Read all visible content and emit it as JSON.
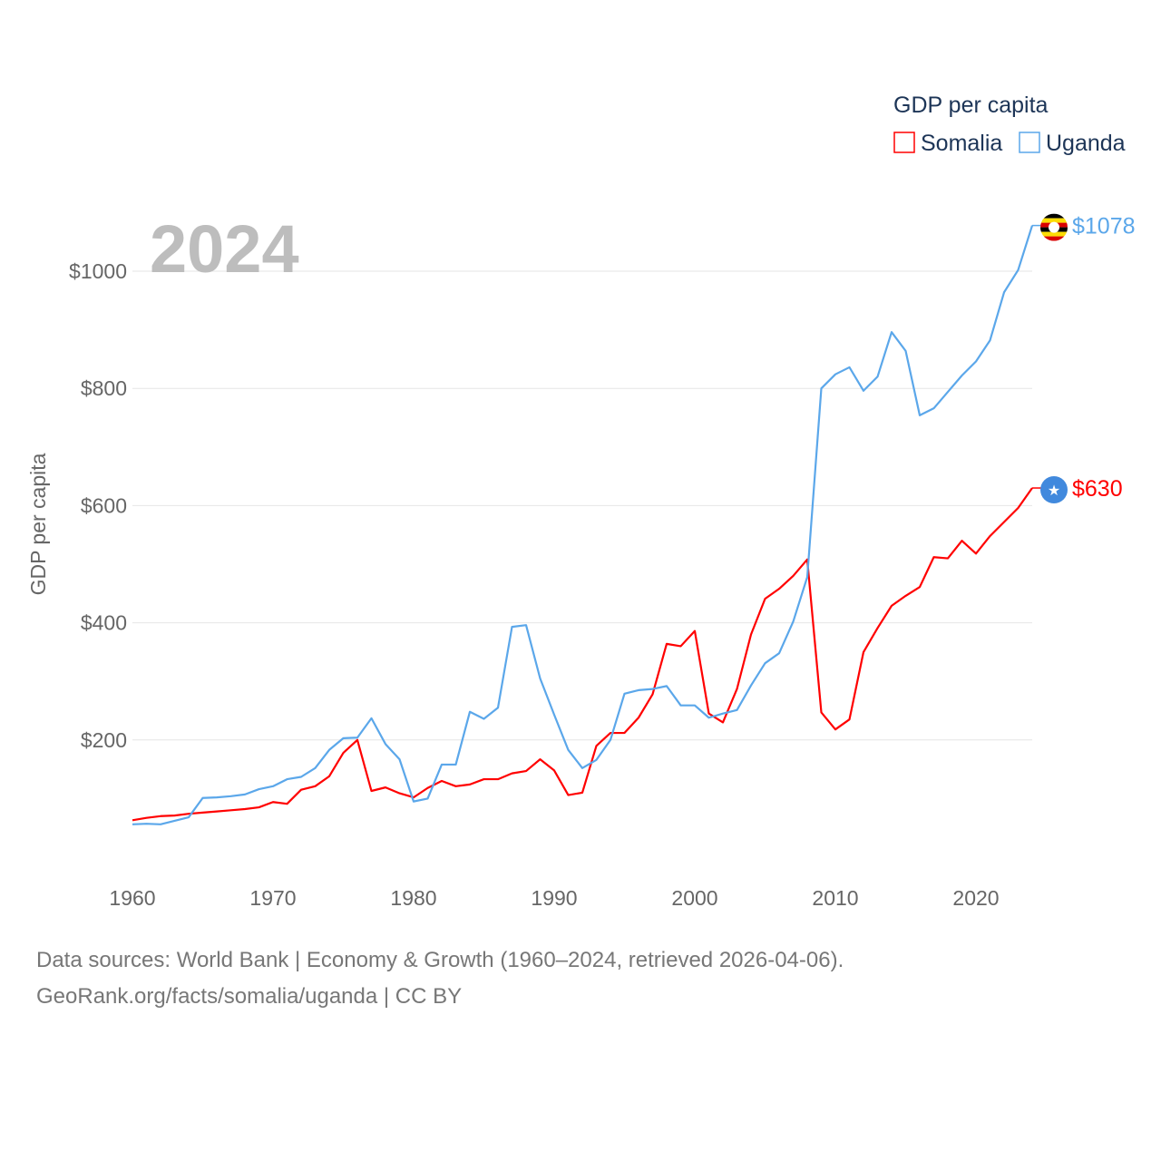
{
  "chart_data": {
    "type": "line",
    "title": "GDP per capita",
    "ylabel": "GDP per capita",
    "xlabel": "",
    "year_label": "2024",
    "xlim": [
      1960,
      2024
    ],
    "ylim": [
      0,
      1100
    ],
    "x_ticks": [
      1960,
      1970,
      1980,
      1990,
      2000,
      2010,
      2020
    ],
    "y_ticks": [
      200,
      400,
      600,
      800,
      1000
    ],
    "y_tick_labels": [
      "$200",
      "$400",
      "$600",
      "$800",
      "$1000"
    ],
    "grid": true,
    "legend_position": "top-right",
    "x": [
      1960,
      1961,
      1962,
      1963,
      1964,
      1965,
      1966,
      1967,
      1968,
      1969,
      1970,
      1971,
      1972,
      1973,
      1974,
      1975,
      1976,
      1977,
      1978,
      1979,
      1980,
      1981,
      1982,
      1983,
      1984,
      1985,
      1986,
      1987,
      1988,
      1989,
      1990,
      1991,
      1992,
      1993,
      1994,
      1995,
      1996,
      1997,
      1998,
      1999,
      2000,
      2001,
      2002,
      2003,
      2004,
      2005,
      2006,
      2007,
      2008,
      2009,
      2010,
      2011,
      2012,
      2013,
      2014,
      2015,
      2016,
      2017,
      2018,
      2019,
      2020,
      2021,
      2022,
      2023,
      2024
    ],
    "series": [
      {
        "name": "Somalia",
        "color": "#ff0000",
        "end_label": "$630",
        "flag": "somalia-flag",
        "values": [
          63,
          67,
          70,
          71,
          74,
          76,
          78,
          80,
          82,
          85,
          94,
          91,
          115,
          121,
          138,
          178,
          200,
          113,
          119,
          109,
          102,
          118,
          130,
          121,
          124,
          133,
          133,
          143,
          147,
          167,
          148,
          106,
          110,
          190,
          212,
          212,
          238,
          278,
          364,
          360,
          386,
          245,
          230,
          287,
          380,
          441,
          458,
          480,
          508,
          247,
          218,
          235,
          350,
          391,
          429,
          446,
          461,
          512,
          510,
          540,
          518,
          548,
          572,
          596,
          630
        ]
      },
      {
        "name": "Uganda",
        "color": "#5ba7ea",
        "end_label": "$1078",
        "flag": "uganda-flag",
        "values": [
          56,
          57,
          56,
          62,
          68,
          101,
          102,
          104,
          107,
          116,
          121,
          133,
          137,
          152,
          183,
          203,
          204,
          237,
          193,
          167,
          95,
          100,
          158,
          158,
          248,
          236,
          255,
          393,
          396,
          305,
          243,
          183,
          152,
          166,
          200,
          279,
          285,
          287,
          292,
          259,
          259,
          238,
          245,
          251,
          293,
          331,
          348,
          402,
          478,
          800,
          824,
          836,
          796,
          820,
          896,
          864,
          754,
          766,
          794,
          822,
          846,
          882,
          964,
          1002,
          1078
        ]
      }
    ]
  },
  "footer": {
    "line1": "Data sources: World Bank | Economy & Growth (1960–2024, retrieved 2026-04-06).",
    "line2": "GeoRank.org/facts/somalia/uganda | CC BY"
  }
}
